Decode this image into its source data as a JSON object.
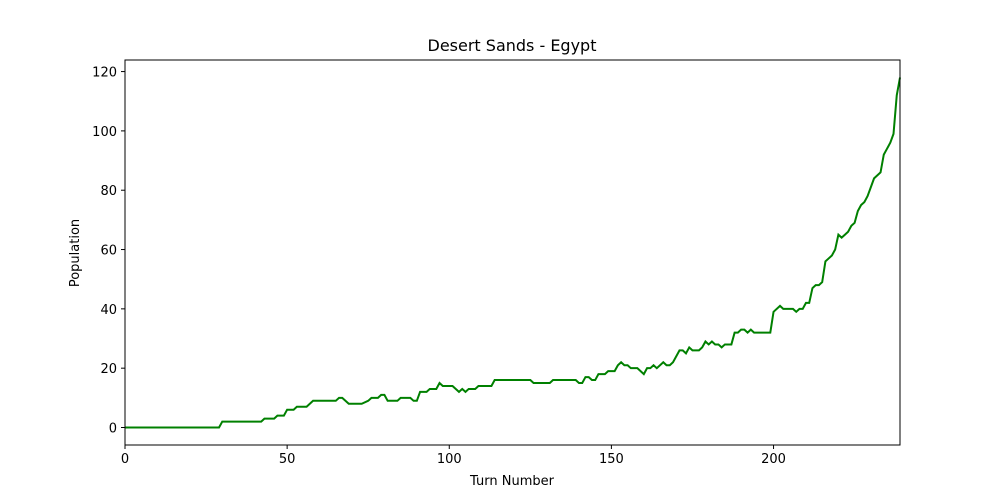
{
  "chart_data": {
    "type": "line",
    "title": "Desert Sands - Egypt",
    "x_label": "Turn Number",
    "y_label": "Population",
    "x": [
      0,
      29,
      30,
      42,
      43,
      46,
      47,
      49,
      50,
      52,
      53,
      56,
      58,
      65,
      66,
      67,
      69,
      73,
      75,
      76,
      78,
      79,
      80,
      81,
      84,
      85,
      88,
      89,
      90,
      91,
      93,
      94,
      96,
      97,
      98,
      101,
      103,
      104,
      105,
      106,
      108,
      109,
      113,
      114,
      125,
      126,
      131,
      132,
      139,
      140,
      141,
      142,
      143,
      144,
      145,
      146,
      148,
      149,
      151,
      152,
      153,
      154,
      155,
      156,
      158,
      160,
      161,
      162,
      163,
      164,
      166,
      167,
      168,
      169,
      171,
      172,
      173,
      174,
      175,
      177,
      178,
      179,
      180,
      181,
      182,
      183,
      184,
      185,
      187,
      188,
      189,
      190,
      191,
      192,
      193,
      194,
      199,
      200,
      202,
      203,
      206,
      207,
      208,
      209,
      210,
      211,
      212,
      213,
      214,
      215,
      216,
      217,
      218,
      219,
      220,
      221,
      222,
      223,
      224,
      225,
      226,
      227,
      228,
      229,
      230,
      231,
      232,
      233,
      234,
      235,
      236,
      237,
      238,
      239
    ],
    "series": [
      {
        "name": "Population",
        "color": "#008000",
        "values": [
          0,
          0,
          2,
          2,
          3,
          3,
          4,
          4,
          6,
          6,
          7,
          7,
          9,
          9,
          10,
          10,
          8,
          8,
          9,
          10,
          10,
          11,
          11,
          9,
          9,
          10,
          10,
          9,
          9,
          12,
          12,
          13,
          13,
          15,
          14,
          14,
          12,
          13,
          12,
          13,
          13,
          14,
          14,
          16,
          16,
          15,
          15,
          16,
          16,
          15,
          15,
          17,
          17,
          16,
          16,
          18,
          18,
          19,
          19,
          21,
          22,
          21,
          21,
          20,
          20,
          18,
          20,
          20,
          21,
          20,
          22,
          21,
          21,
          22,
          26,
          26,
          25,
          27,
          26,
          26,
          27,
          29,
          28,
          29,
          28,
          28,
          27,
          28,
          28,
          32,
          32,
          33,
          33,
          32,
          33,
          32,
          32,
          39,
          41,
          40,
          40,
          39,
          40,
          40,
          42,
          42,
          47,
          48,
          48,
          49,
          56,
          57,
          58,
          60,
          65,
          64,
          65,
          66,
          68,
          69,
          73,
          75,
          76,
          78,
          81,
          84,
          85,
          86,
          92,
          94,
          96,
          99,
          112,
          118
        ]
      }
    ],
    "xlim": [
      0,
      239
    ],
    "ylim": [
      -5.9,
      123.9
    ],
    "xticks": [
      0,
      50,
      100,
      150,
      200
    ],
    "yticks": [
      0,
      20,
      40,
      60,
      80,
      100,
      120
    ]
  }
}
